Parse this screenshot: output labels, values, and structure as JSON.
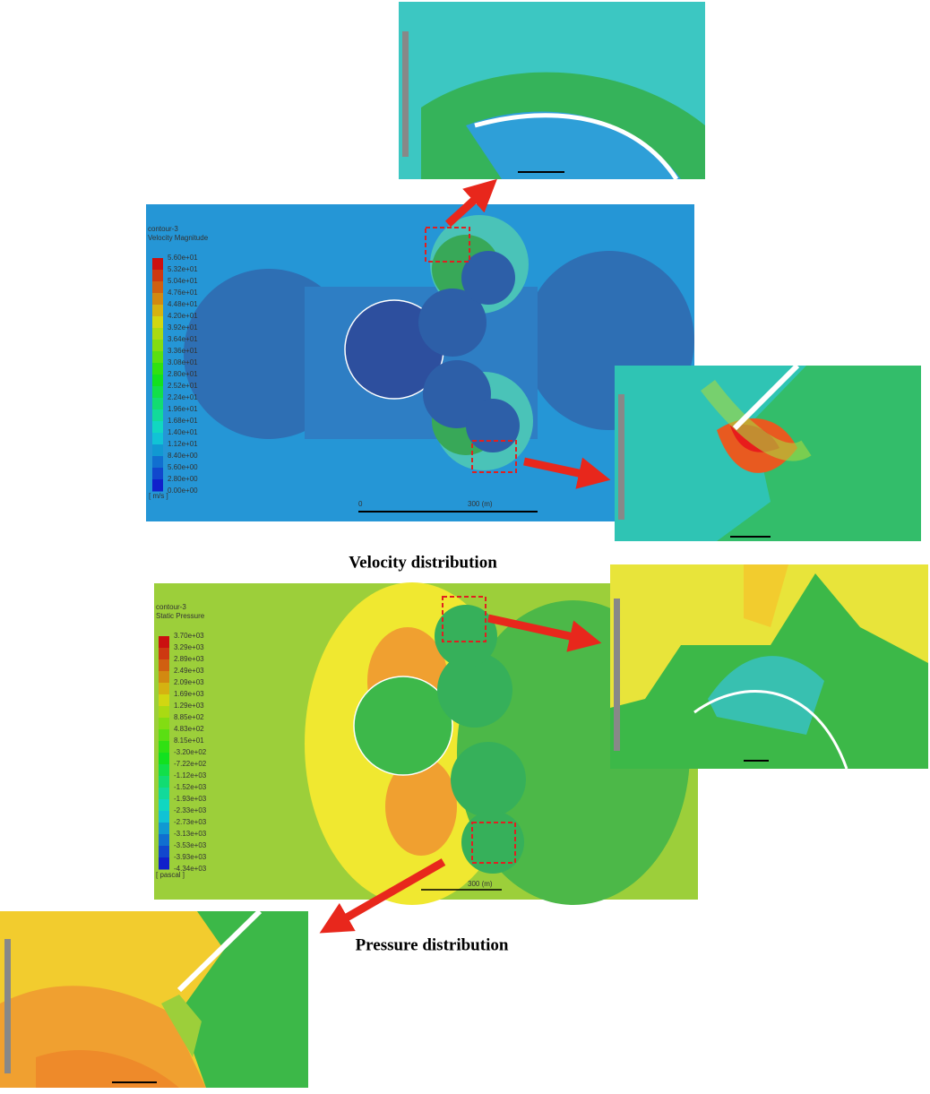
{
  "velocity_panel": {
    "title": "contour-3",
    "subtitle": "Velocity Magnitude",
    "legend_labels": [
      "5.60e+01",
      "5.32e+01",
      "5.04e+01",
      "4.76e+01",
      "4.48e+01",
      "4.20e+01",
      "3.92e+01",
      "3.64e+01",
      "3.36e+01",
      "3.08e+01",
      "2.80e+01",
      "2.52e+01",
      "2.24e+01",
      "1.96e+01",
      "1.68e+01",
      "1.40e+01",
      "1.12e+01",
      "8.40e+00",
      "5.60e+00",
      "2.80e+00",
      "0.00e+00"
    ],
    "unit": "[ m/s ]",
    "scale_start": "0",
    "scale_end": "300 (m)"
  },
  "velocity_caption": "Velocity distribution",
  "pressure_panel": {
    "title": "contour-3",
    "subtitle": "Static Pressure",
    "legend_labels": [
      "3.70e+03",
      "3.29e+03",
      "2.89e+03",
      "2.49e+03",
      "2.09e+03",
      "1.69e+03",
      "1.29e+03",
      "8.85e+02",
      "4.83e+02",
      "8.15e+01",
      "-3.20e+02",
      "-7.22e+02",
      "-1.12e+03",
      "-1.52e+03",
      "-1.93e+03",
      "-2.33e+03",
      "-2.73e+03",
      "-3.13e+03",
      "-3.53e+03",
      "-3.93e+03",
      "-4.34e+03"
    ],
    "unit": "[ pascal ]",
    "scale_end": "300 (m)"
  },
  "pressure_caption": "Pressure distribution"
}
